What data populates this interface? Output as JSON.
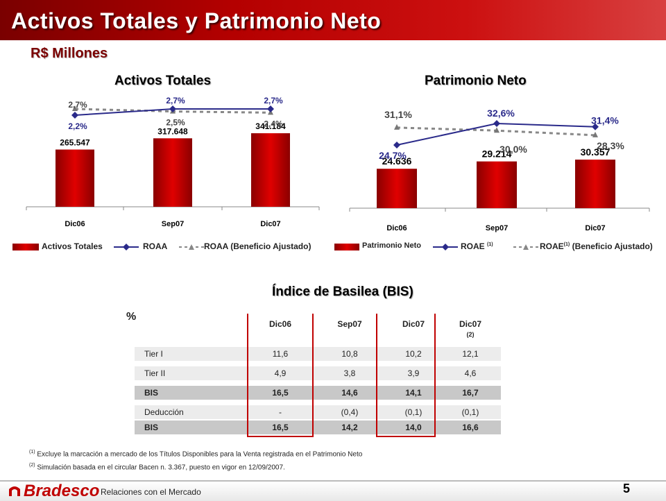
{
  "header": {
    "title": "Activos Totales y Patrimonio Neto",
    "subtitle": "R$ Millones"
  },
  "charts": {
    "activos": {
      "title": "Activos Totales"
    },
    "patrimonio": {
      "title": "Patrimonio Neto"
    },
    "basilea": {
      "title": "Índice de Basilea (BIS)"
    }
  },
  "legends": {
    "activos": {
      "bars": "Activos Totales",
      "line": "ROAA",
      "dashed": "ROAA (Beneficio Ajustado)"
    },
    "patrimonio": {
      "bars": "Patrimonio Neto",
      "line": "ROAE",
      "line_sup": "(1)",
      "dashed": "ROAE",
      "dashed_sup": "(1)",
      "dashed_rest": "(Beneficio Ajustado)"
    }
  },
  "colors": {
    "bar": "#e00000",
    "bar_dark": "#8a0000",
    "line": "#2a2a8a",
    "dashed": "#888888",
    "title_bg": "#b40000",
    "highlight_border": "#c00000"
  },
  "chart_data": [
    {
      "type": "bar",
      "title": "Activos Totales",
      "categories": [
        "Dic06",
        "Sep07",
        "Dic07"
      ],
      "values": [
        265547,
        317648,
        341184
      ],
      "value_labels": [
        "265.547",
        "317.648",
        "341.184"
      ],
      "series": [
        {
          "name": "ROAA",
          "type": "line",
          "values": [
            2.2,
            2.7,
            2.7
          ],
          "labels": [
            "2,2%",
            "2,7%",
            "2,7%"
          ]
        },
        {
          "name": "ROAA (Beneficio Ajustado)",
          "type": "line-dashed",
          "values": [
            2.7,
            2.5,
            2.4
          ],
          "labels": [
            "2,7%",
            "2,5%",
            "2,4%"
          ]
        }
      ]
    },
    {
      "type": "bar",
      "title": "Patrimonio Neto",
      "categories": [
        "Dic06",
        "Sep07",
        "Dic07"
      ],
      "values": [
        24636,
        29214,
        30357
      ],
      "value_labels": [
        "24.636",
        "29.214",
        "30.357"
      ],
      "series": [
        {
          "name": "ROAE (1)",
          "type": "line",
          "values": [
            24.7,
            32.6,
            31.4
          ],
          "labels": [
            "24,7%",
            "32,6%",
            "31,4%"
          ]
        },
        {
          "name": "ROAE (1) (Beneficio Ajustado)",
          "type": "line-dashed",
          "values": [
            31.1,
            30.0,
            28.3
          ],
          "labels": [
            "31,1%",
            "30,0%",
            "28,3%"
          ]
        }
      ]
    },
    {
      "type": "table",
      "title": "Índice de Basilea (BIS)",
      "unit": "%",
      "columns": [
        "Dic06",
        "Sep07",
        "Dic07",
        "Dic07"
      ],
      "column_notes": [
        "",
        "",
        "",
        "(2)"
      ],
      "rows": [
        {
          "label": "Tier I",
          "values": [
            "11,6",
            "10,8",
            "10,2",
            "12,1"
          ],
          "style": "light"
        },
        {
          "label": "Tier II",
          "values": [
            "4,9",
            "3,8",
            "3,9",
            "4,6"
          ],
          "style": "light"
        },
        {
          "label": "BIS",
          "values": [
            "16,5",
            "14,6",
            "14,1",
            "16,7"
          ],
          "style": "dark"
        },
        {
          "label": "Deducción",
          "values": [
            "-",
            "(0,4)",
            "(0,1)",
            "(0,1)"
          ],
          "style": "light"
        },
        {
          "label": "BIS",
          "values": [
            "16,5",
            "14,2",
            "14,0",
            "16,6"
          ],
          "style": "dark"
        }
      ]
    }
  ],
  "footnotes": [
    {
      "sup": "(1)",
      "text": "Excluye la marcación a mercado de los Títulos Disponibles para la Venta registrada en el Patrimonio Neto"
    },
    {
      "sup": "(2)",
      "text": "Simulación basada en el circular Bacen n. 3.367, puesto en vigor en 12/09/2007."
    }
  ],
  "footer": {
    "brand": "Bradesco",
    "section": "Relaciones con el Mercado",
    "page": "5"
  }
}
